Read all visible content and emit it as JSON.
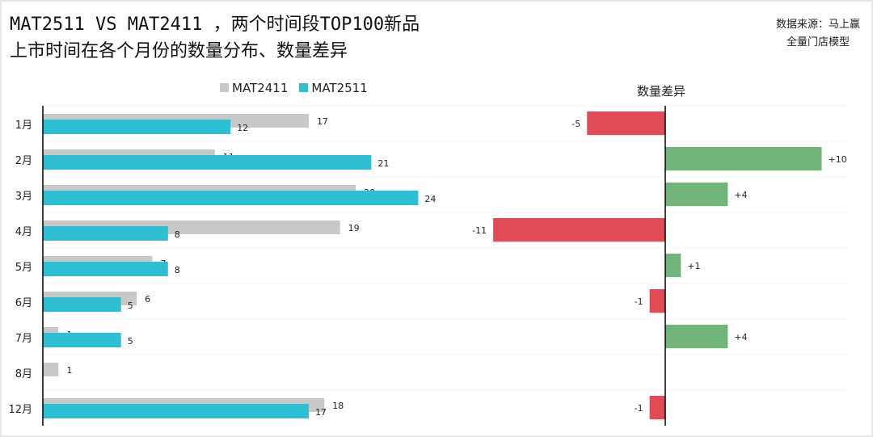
{
  "title_lines": [
    "MAT2511 VS MAT2411 ，两个时间段TOP100新品",
    "上市时间在各个月份的数量分布、数量差异"
  ],
  "source_lines": [
    "数据来源：马上赢",
    "全量门店模型"
  ],
  "colors": {
    "MAT2411": "#c8c8c8",
    "MAT2511": "#2fbfd3",
    "positive": "#72b57a",
    "negative": "#e04b55"
  },
  "chart_data": [
    {
      "type": "bar",
      "orientation": "horizontal",
      "categories": [
        "1月",
        "2月",
        "3月",
        "4月",
        "5月",
        "6月",
        "7月",
        "8月",
        "12月"
      ],
      "series": [
        {
          "name": "MAT2411",
          "values": [
            17,
            11,
            20,
            19,
            7,
            6,
            1,
            1,
            18
          ]
        },
        {
          "name": "MAT2511",
          "values": [
            12,
            21,
            24,
            8,
            8,
            5,
            5,
            null,
            17
          ]
        }
      ],
      "legend": "top",
      "grid": false
    },
    {
      "type": "bar",
      "orientation": "horizontal",
      "title": "数量差异",
      "categories": [
        "1月",
        "2月",
        "3月",
        "4月",
        "5月",
        "6月",
        "7月",
        "8月",
        "12月"
      ],
      "values": [
        -5,
        10,
        4,
        -11,
        1,
        -1,
        4,
        null,
        -1
      ],
      "labels": [
        "-5",
        "+10",
        "+4",
        "-11",
        "+1",
        "-1",
        "+4",
        "",
        "-1"
      ]
    }
  ]
}
